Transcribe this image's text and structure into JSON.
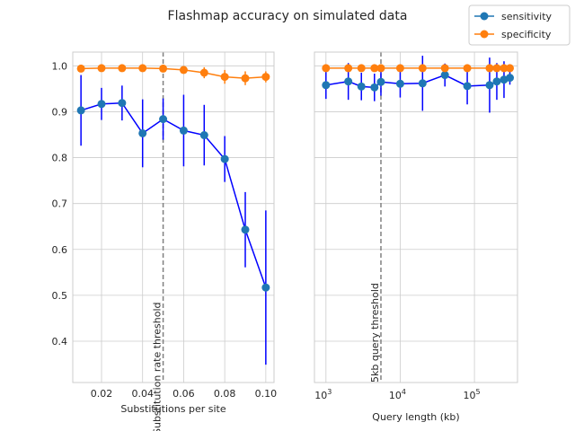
{
  "figure_title": "Flashmap accuracy on simulated data",
  "colors": {
    "sensitivity": "#1f77b4",
    "specificity": "#ff7f0e",
    "error_bar": "#0000ff",
    "threshold": "#808080",
    "grid": "#cccccc"
  },
  "legend": {
    "position": "upper-right",
    "entries": [
      {
        "label": "sensitivity",
        "series": "sensitivity"
      },
      {
        "label": "specificity",
        "series": "specificity"
      }
    ]
  },
  "chart_data": [
    {
      "type": "line",
      "xlabel": "Substitutions per site",
      "ylabel": "",
      "x_scale": "linear",
      "xlim": [
        0.006,
        0.104
      ],
      "ylim": [
        0.31,
        1.03
      ],
      "grid": true,
      "x_ticks": [
        {
          "value": 0.02,
          "label": "0.02"
        },
        {
          "value": 0.04,
          "label": "0.04"
        },
        {
          "value": 0.06,
          "label": "0.06"
        },
        {
          "value": 0.08,
          "label": "0.08"
        },
        {
          "value": 0.1,
          "label": "0.10"
        }
      ],
      "y_ticks": [
        {
          "value": 0.4,
          "label": "0.4"
        },
        {
          "value": 0.5,
          "label": "0.5"
        },
        {
          "value": 0.6,
          "label": "0.6"
        },
        {
          "value": 0.7,
          "label": "0.7"
        },
        {
          "value": 0.8,
          "label": "0.8"
        },
        {
          "value": 0.9,
          "label": "0.9"
        },
        {
          "value": 1.0,
          "label": "1.0"
        }
      ],
      "threshold": {
        "x": 0.05,
        "label": "Substitution rate threshold"
      },
      "series": [
        {
          "name": "sensitivity",
          "x": [
            0.01,
            0.02,
            0.03,
            0.04,
            0.05,
            0.06,
            0.07,
            0.08,
            0.09,
            0.1
          ],
          "y": [
            0.903,
            0.917,
            0.919,
            0.853,
            0.884,
            0.859,
            0.849,
            0.797,
            0.643,
            0.517
          ],
          "yerr": [
            0.077,
            0.035,
            0.038,
            0.074,
            0.045,
            0.078,
            0.066,
            0.05,
            0.082,
            0.168
          ]
        },
        {
          "name": "specificity",
          "x": [
            0.01,
            0.02,
            0.03,
            0.04,
            0.05,
            0.06,
            0.07,
            0.08,
            0.09,
            0.1
          ],
          "y": [
            0.994,
            0.995,
            0.995,
            0.995,
            0.994,
            0.991,
            0.985,
            0.976,
            0.973,
            0.976
          ],
          "yerr": [
            0.003,
            0.003,
            0.003,
            0.003,
            0.004,
            0.005,
            0.012,
            0.015,
            0.015,
            0.012
          ]
        }
      ]
    },
    {
      "type": "line",
      "xlabel": "Query length (kb)",
      "ylabel": "",
      "x_scale": "log",
      "xlim": [
        700,
        380000
      ],
      "ylim": [
        0.31,
        1.03
      ],
      "grid": true,
      "x_ticks": [
        {
          "value": 1000,
          "base": "10",
          "exp": "3"
        },
        {
          "value": 10000,
          "base": "10",
          "exp": "4"
        },
        {
          "value": 100000,
          "base": "10",
          "exp": "5"
        }
      ],
      "threshold": {
        "x": 5500,
        "label": "5kb query threshold"
      },
      "series": [
        {
          "name": "sensitivity",
          "x": [
            1000,
            2000,
            3000,
            4500,
            5500,
            10000,
            20000,
            40000,
            80000,
            160000,
            200000,
            250000,
            300000
          ],
          "y": [
            0.958,
            0.966,
            0.955,
            0.953,
            0.965,
            0.961,
            0.962,
            0.98,
            0.956,
            0.958,
            0.966,
            0.97,
            0.974
          ],
          "yerr": [
            0.03,
            0.04,
            0.03,
            0.03,
            0.03,
            0.03,
            0.06,
            0.025,
            0.04,
            0.06,
            0.04,
            0.04,
            0.015
          ]
        },
        {
          "name": "specificity",
          "x": [
            1000,
            2000,
            3000,
            4500,
            5500,
            10000,
            20000,
            40000,
            80000,
            160000,
            200000,
            250000,
            300000
          ],
          "y": [
            0.995,
            0.995,
            0.995,
            0.995,
            0.995,
            0.995,
            0.995,
            0.995,
            0.995,
            0.995,
            0.995,
            0.995,
            0.995
          ],
          "yerr": [
            0.003,
            0.003,
            0.003,
            0.003,
            0.003,
            0.003,
            0.003,
            0.003,
            0.003,
            0.003,
            0.003,
            0.003,
            0.003
          ]
        }
      ]
    }
  ]
}
